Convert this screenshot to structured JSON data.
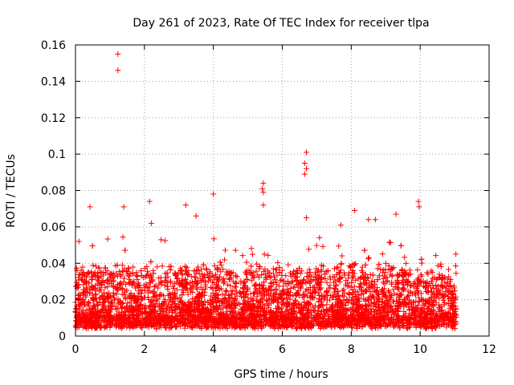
{
  "chart_data": {
    "type": "scatter",
    "title": "Day 261 of 2023, Rate Of TEC Index for receiver tlpa",
    "xlabel": "GPS time / hours",
    "ylabel": "ROTI / TECUs",
    "xlim": [
      0,
      12
    ],
    "ylim": [
      0,
      0.16
    ],
    "xticks": [
      "0",
      "2",
      "4",
      "6",
      "8",
      "10",
      "12"
    ],
    "yticks": [
      "0",
      "0.02",
      "0.04",
      "0.06",
      "0.08",
      "0.1",
      "0.12",
      "0.14",
      "0.16"
    ],
    "grid": true,
    "marker": "plus",
    "color": "#ff0000",
    "data_extent_hours": [
      0,
      11.05
    ],
    "notable_points": [
      {
        "x": 1.23,
        "y": 0.155
      },
      {
        "x": 1.23,
        "y": 0.146
      },
      {
        "x": 6.7,
        "y": 0.101
      },
      {
        "x": 6.65,
        "y": 0.095
      },
      {
        "x": 6.7,
        "y": 0.092
      },
      {
        "x": 6.65,
        "y": 0.089
      },
      {
        "x": 5.45,
        "y": 0.084
      },
      {
        "x": 5.42,
        "y": 0.081
      },
      {
        "x": 5.45,
        "y": 0.079
      },
      {
        "x": 4.0,
        "y": 0.078
      },
      {
        "x": 2.15,
        "y": 0.074
      },
      {
        "x": 9.95,
        "y": 0.074
      },
      {
        "x": 3.2,
        "y": 0.072
      },
      {
        "x": 9.97,
        "y": 0.071
      },
      {
        "x": 0.42,
        "y": 0.071
      },
      {
        "x": 1.4,
        "y": 0.071
      },
      {
        "x": 5.45,
        "y": 0.072
      },
      {
        "x": 9.3,
        "y": 0.067
      },
      {
        "x": 8.1,
        "y": 0.069
      },
      {
        "x": 8.5,
        "y": 0.064
      },
      {
        "x": 8.7,
        "y": 0.064
      },
      {
        "x": 6.7,
        "y": 0.065
      },
      {
        "x": 3.5,
        "y": 0.066
      },
      {
        "x": 2.2,
        "y": 0.062
      },
      {
        "x": 0.1,
        "y": 0.052
      },
      {
        "x": 7.7,
        "y": 0.061
      }
    ]
  }
}
